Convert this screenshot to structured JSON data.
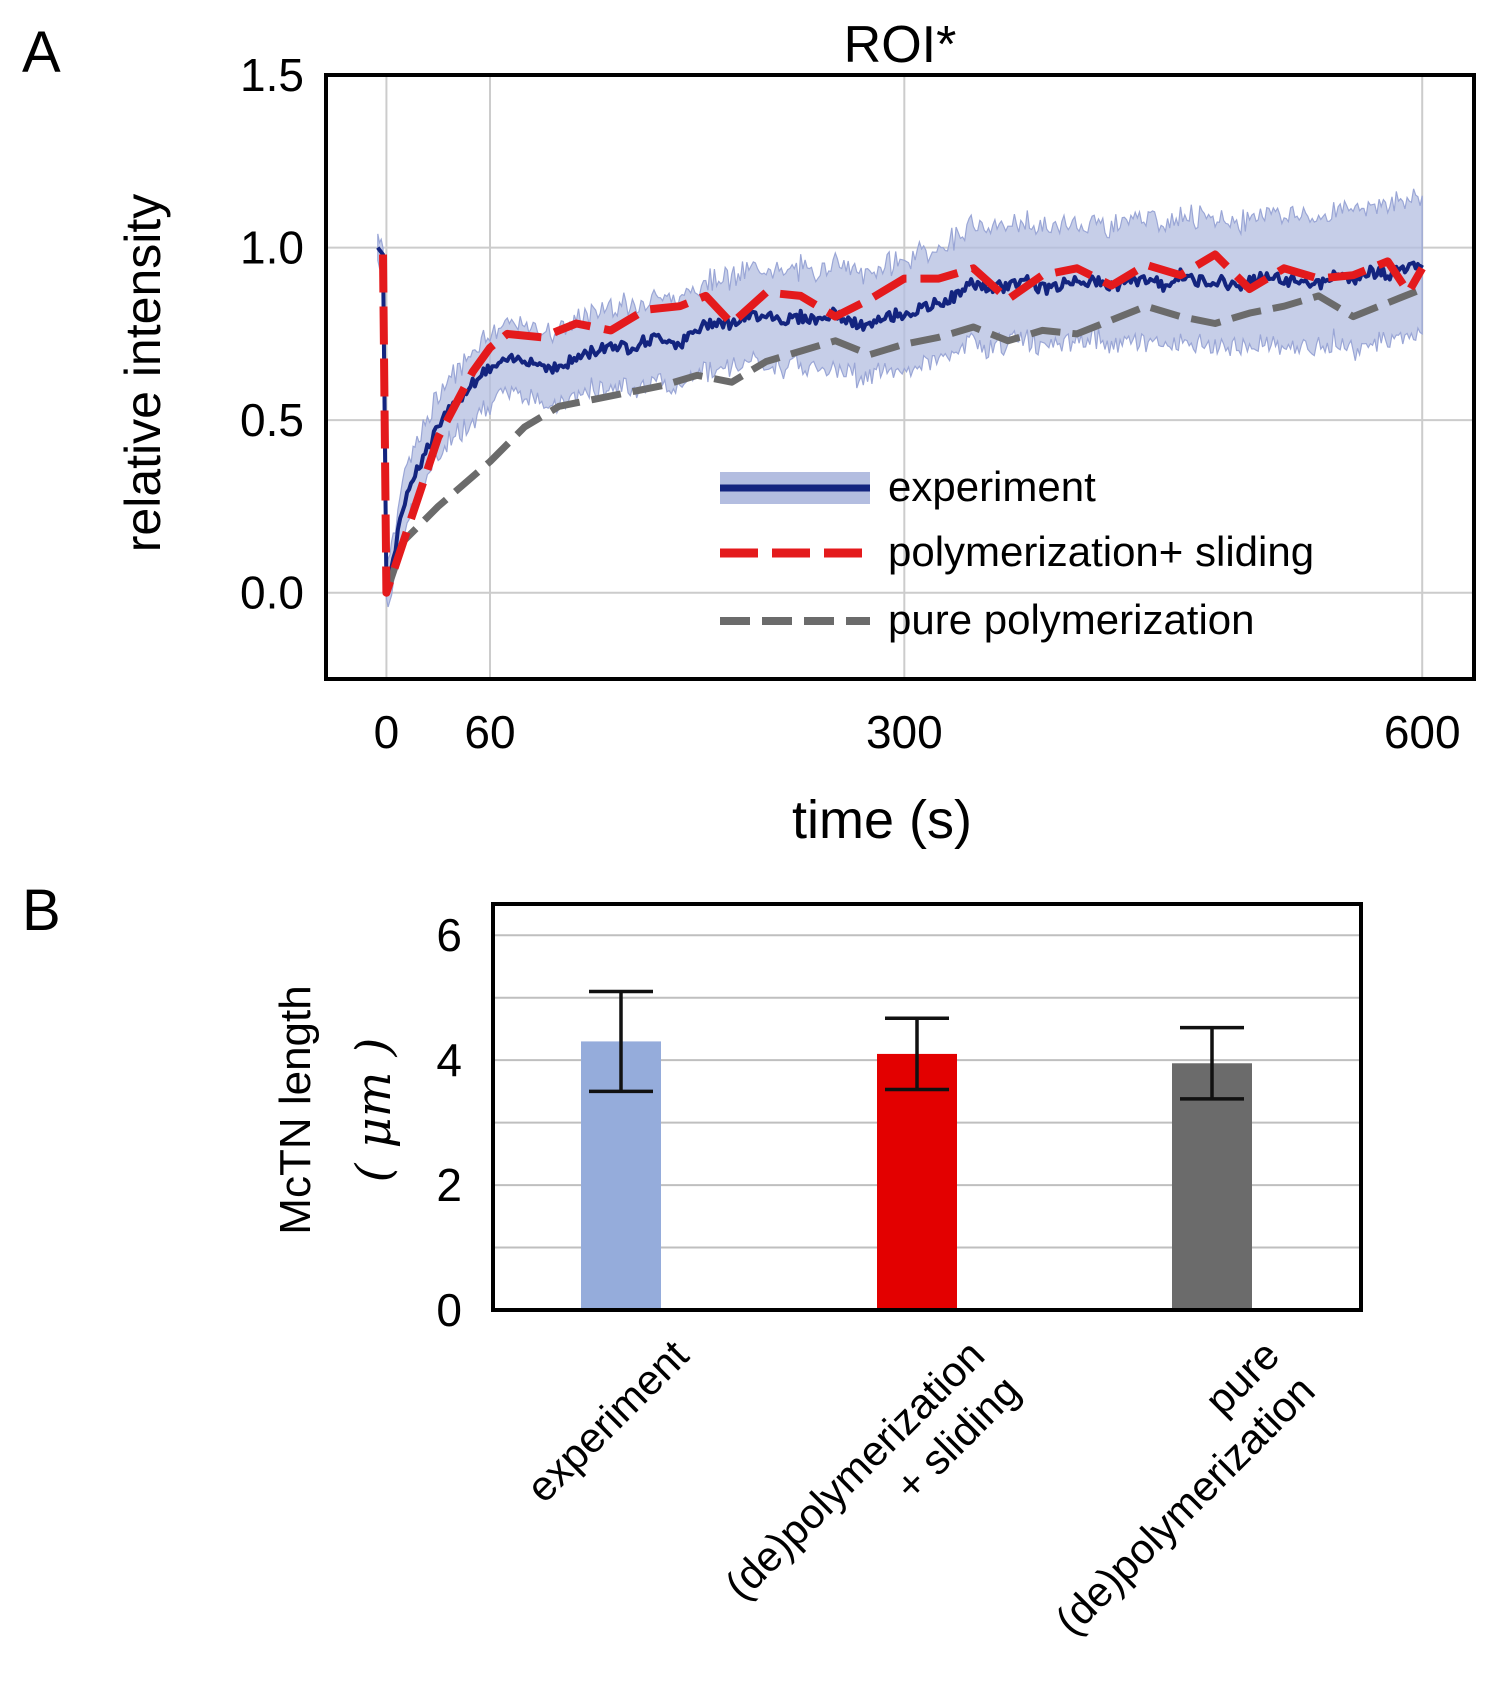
{
  "panels": {
    "a": "A",
    "b": "B"
  },
  "chart_data": [
    {
      "type": "line",
      "panel": "A",
      "title": "ROI*",
      "xlabel": "time (s)",
      "ylabel": "relative intensity",
      "xticks": [
        0,
        60,
        300,
        600
      ],
      "xtick_labels": [
        "0",
        "60",
        "300",
        "600"
      ],
      "yticks": [
        0,
        0.5,
        1.0,
        1.5
      ],
      "ytick_labels": [
        "0.0",
        "0.5",
        "1.0",
        "1.5"
      ],
      "xlim": [
        -35,
        630
      ],
      "ylim": [
        -0.25,
        1.5
      ],
      "grid": true,
      "legend_position": "lower-right",
      "colors": {
        "experiment": "#13247f",
        "band": "#b3bde0",
        "sliding": "#e41a1c",
        "pure": "#6b6b6b"
      },
      "series": [
        {
          "name": "experiment",
          "legend_label": "experiment",
          "style": "solid",
          "x": [
            -5,
            -2,
            0,
            2,
            4,
            8,
            12,
            20,
            30,
            40,
            50,
            60,
            70,
            80,
            90,
            100,
            110,
            120,
            130,
            140,
            150,
            160,
            170,
            180,
            190,
            200,
            210,
            220,
            230,
            240,
            250,
            260,
            270,
            280,
            290,
            300,
            310,
            320,
            330,
            340,
            350,
            360,
            370,
            380,
            390,
            400,
            410,
            420,
            430,
            440,
            450,
            460,
            470,
            480,
            490,
            500,
            510,
            520,
            530,
            540,
            550,
            560,
            570,
            580,
            590,
            600
          ],
          "y": [
            1.0,
            0.98,
            0.02,
            0.05,
            0.1,
            0.2,
            0.3,
            0.38,
            0.48,
            0.55,
            0.61,
            0.65,
            0.67,
            0.68,
            0.66,
            0.65,
            0.68,
            0.7,
            0.72,
            0.71,
            0.73,
            0.74,
            0.72,
            0.76,
            0.79,
            0.78,
            0.8,
            0.81,
            0.79,
            0.8,
            0.79,
            0.81,
            0.78,
            0.77,
            0.8,
            0.81,
            0.82,
            0.84,
            0.86,
            0.9,
            0.88,
            0.89,
            0.91,
            0.88,
            0.89,
            0.91,
            0.9,
            0.89,
            0.9,
            0.91,
            0.89,
            0.92,
            0.9,
            0.91,
            0.89,
            0.9,
            0.92,
            0.9,
            0.91,
            0.89,
            0.92,
            0.91,
            0.93,
            0.92,
            0.94,
            0.95
          ],
          "band_half_width": [
            0.04,
            0.04,
            0.05,
            0.06,
            0.07,
            0.08,
            0.08,
            0.08,
            0.09,
            0.09,
            0.1,
            0.1,
            0.1,
            0.1,
            0.1,
            0.11,
            0.11,
            0.11,
            0.12,
            0.12,
            0.12,
            0.12,
            0.13,
            0.13,
            0.13,
            0.13,
            0.13,
            0.14,
            0.14,
            0.14,
            0.14,
            0.15,
            0.15,
            0.15,
            0.15,
            0.16,
            0.16,
            0.16,
            0.17,
            0.17,
            0.17,
            0.17,
            0.17,
            0.17,
            0.17,
            0.17,
            0.17,
            0.17,
            0.18,
            0.18,
            0.18,
            0.18,
            0.18,
            0.18,
            0.18,
            0.19,
            0.19,
            0.19,
            0.19,
            0.19,
            0.19,
            0.2,
            0.2,
            0.2,
            0.2,
            0.2
          ]
        },
        {
          "name": "polymerization+ sliding",
          "legend_label": "polymerization+ sliding",
          "style": "dashed",
          "x": [
            -2,
            0,
            30,
            50,
            60,
            70,
            90,
            110,
            130,
            150,
            170,
            185,
            200,
            220,
            240,
            260,
            280,
            300,
            320,
            340,
            360,
            380,
            400,
            420,
            440,
            460,
            480,
            500,
            520,
            540,
            560,
            580,
            592,
            600
          ],
          "y": [
            0.98,
            0.0,
            0.45,
            0.64,
            0.71,
            0.75,
            0.74,
            0.78,
            0.76,
            0.82,
            0.83,
            0.86,
            0.78,
            0.87,
            0.86,
            0.8,
            0.85,
            0.91,
            0.91,
            0.94,
            0.85,
            0.92,
            0.94,
            0.89,
            0.95,
            0.92,
            0.98,
            0.88,
            0.94,
            0.91,
            0.92,
            0.96,
            0.87,
            0.94
          ]
        },
        {
          "name": "pure polymerization",
          "legend_label": "pure polymerization",
          "style": "dashed",
          "x": [
            0,
            10,
            30,
            60,
            80,
            100,
            120,
            140,
            160,
            180,
            200,
            220,
            240,
            260,
            280,
            300,
            320,
            340,
            360,
            380,
            400,
            420,
            440,
            460,
            480,
            500,
            520,
            540,
            560,
            580,
            600
          ],
          "y": [
            0.0,
            0.15,
            0.25,
            0.38,
            0.48,
            0.54,
            0.56,
            0.58,
            0.6,
            0.63,
            0.61,
            0.67,
            0.7,
            0.73,
            0.69,
            0.72,
            0.74,
            0.77,
            0.73,
            0.76,
            0.75,
            0.79,
            0.83,
            0.8,
            0.78,
            0.81,
            0.83,
            0.86,
            0.8,
            0.84,
            0.88
          ]
        }
      ]
    },
    {
      "type": "bar",
      "panel": "B",
      "ylabel_line1": "McTN length",
      "ylabel_unit": "( μm )",
      "categories": [
        [
          "experiment"
        ],
        [
          "(de)polymerization",
          "+ sliding"
        ],
        [
          "pure",
          "(de)polymerization"
        ]
      ],
      "values": [
        4.3,
        4.1,
        3.95
      ],
      "errors": [
        0.8,
        0.57,
        0.57
      ],
      "bar_colors": [
        "#95acdb",
        "#e30000",
        "#6b6b6b"
      ],
      "yticks": [
        0,
        2,
        4,
        6
      ],
      "ytick_labels": [
        "0",
        "2",
        "4",
        "6"
      ],
      "ylim": [
        0,
        6.5
      ],
      "grid": true
    }
  ]
}
